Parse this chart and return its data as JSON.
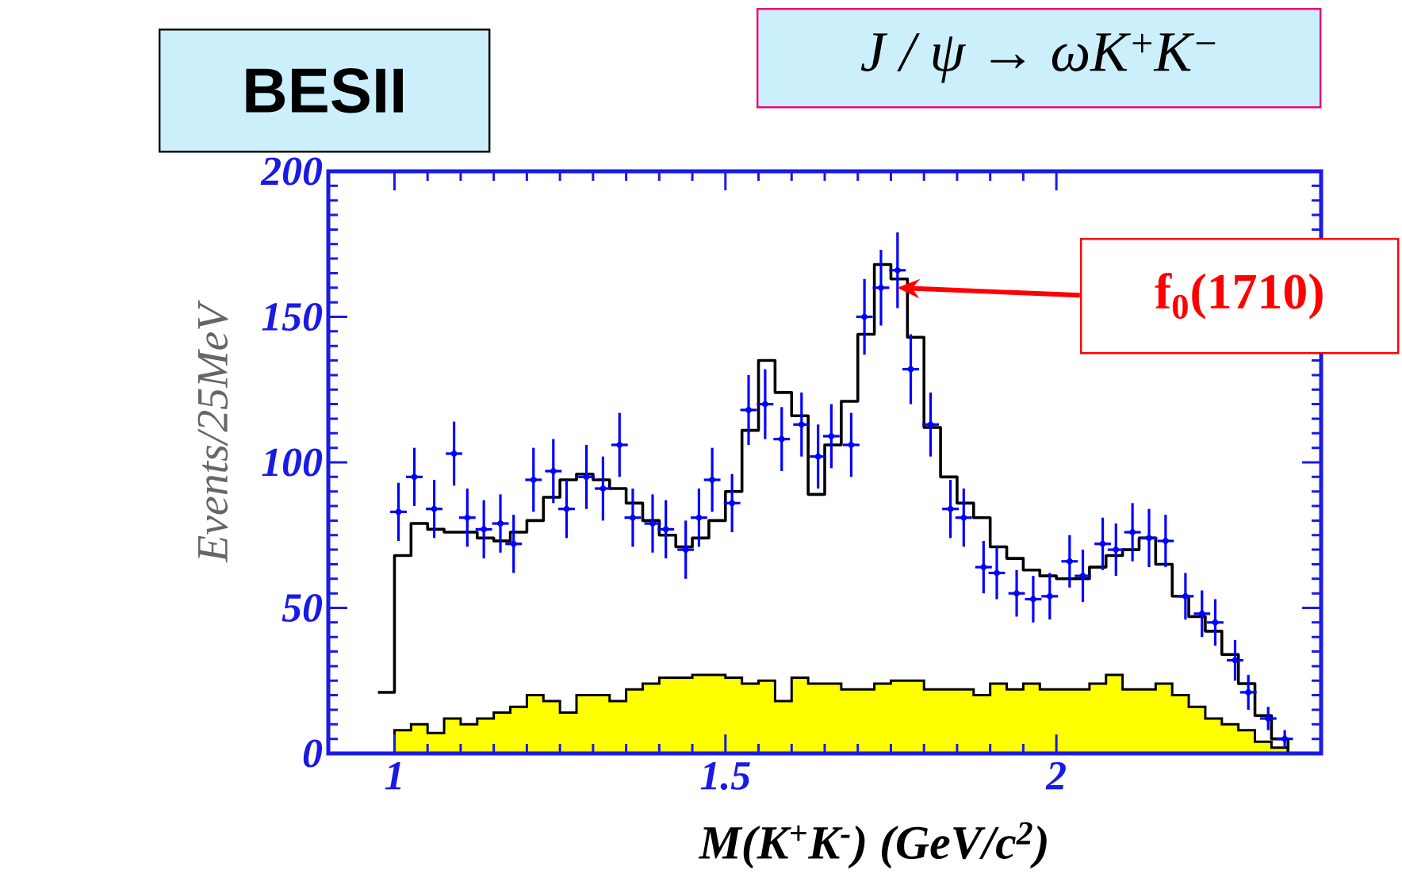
{
  "chart_data": {
    "type": "scatter",
    "xlabel": "M(K$^{+}$K$^{-}$) (GeV/c$^{2}$)",
    "ylabel": "Events/25MeV",
    "xlim": [
      0.9,
      2.4
    ],
    "ylim": [
      0,
      200
    ],
    "xticks": [
      1,
      1.5,
      2
    ],
    "yticks": [
      0,
      50,
      100,
      150,
      200
    ],
    "annotations": [
      "BESII",
      "*J / ψ → ωK*$^{+}$*K*$^{−}$",
      "f$_{0}$(1710)"
    ],
    "series": [
      {
        "type": "area",
        "color": "#ffff00",
        "x": [
          1.0,
          1.025,
          1.05,
          1.075,
          1.1,
          1.125,
          1.15,
          1.175,
          1.2,
          1.225,
          1.25,
          1.275,
          1.3,
          1.325,
          1.35,
          1.375,
          1.4,
          1.425,
          1.45,
          1.475,
          1.5,
          1.525,
          1.55,
          1.575,
          1.6,
          1.625,
          1.65,
          1.675,
          1.7,
          1.725,
          1.75,
          1.775,
          1.8,
          1.825,
          1.85,
          1.875,
          1.9,
          1.925,
          1.95,
          1.975,
          2.0,
          2.025,
          2.05,
          2.075,
          2.1,
          2.125,
          2.15,
          2.175,
          2.2,
          2.225,
          2.25,
          2.275,
          2.3,
          2.325,
          2.35
        ],
        "values": [
          8,
          10,
          7,
          12,
          10,
          12,
          14,
          16,
          20,
          18,
          14,
          20,
          20,
          18,
          22,
          24,
          26,
          26,
          27,
          27,
          26,
          24,
          25,
          18,
          26,
          24,
          24,
          22,
          22,
          24,
          25,
          25,
          22,
          22,
          22,
          20,
          24,
          22,
          24,
          22,
          22,
          22,
          24,
          27,
          22,
          22,
          24,
          20,
          16,
          12,
          10,
          8,
          4,
          2,
          0
        ]
      },
      {
        "type": "step",
        "color": "#000000",
        "x": [
          0.975,
          1.0,
          1.025,
          1.05,
          1.075,
          1.1,
          1.125,
          1.15,
          1.175,
          1.2,
          1.225,
          1.25,
          1.275,
          1.3,
          1.325,
          1.35,
          1.375,
          1.4,
          1.425,
          1.45,
          1.475,
          1.5,
          1.525,
          1.55,
          1.575,
          1.6,
          1.625,
          1.65,
          1.675,
          1.7,
          1.725,
          1.75,
          1.775,
          1.8,
          1.825,
          1.85,
          1.875,
          1.9,
          1.925,
          1.95,
          1.975,
          2.0,
          2.025,
          2.05,
          2.075,
          2.1,
          2.125,
          2.15,
          2.175,
          2.2,
          2.225,
          2.25,
          2.275,
          2.3,
          2.325,
          2.35
        ],
        "values": [
          21,
          68,
          79,
          77,
          76,
          76,
          74,
          73,
          76,
          80,
          88,
          94,
          96,
          94,
          91,
          86,
          80,
          75,
          71,
          74,
          80,
          90,
          111,
          135,
          124,
          116,
          89,
          106,
          121,
          144,
          168,
          163,
          143,
          112,
          95,
          86,
          81,
          71,
          67,
          63,
          61,
          60,
          60,
          64,
          68,
          70,
          74,
          65,
          54,
          47,
          42,
          34,
          24,
          13,
          5,
          0
        ]
      },
      {
        "color": "#0000ff",
        "marker": "circle",
        "x": [
          1.006,
          1.03,
          1.06,
          1.09,
          1.11,
          1.135,
          1.16,
          1.18,
          1.21,
          1.24,
          1.26,
          1.29,
          1.315,
          1.34,
          1.36,
          1.39,
          1.41,
          1.44,
          1.46,
          1.48,
          1.51,
          1.535,
          1.56,
          1.585,
          1.615,
          1.64,
          1.66,
          1.69,
          1.71,
          1.735,
          1.76,
          1.78,
          1.81,
          1.84,
          1.86,
          1.89,
          1.91,
          1.94,
          1.965,
          1.99,
          2.02,
          2.04,
          2.07,
          2.09,
          2.115,
          2.14,
          2.165,
          2.195,
          2.22,
          2.24,
          2.27,
          2.29,
          2.32,
          2.345
        ],
        "values": [
          83,
          95,
          84,
          103,
          81,
          77,
          79,
          72,
          94,
          97,
          84,
          95,
          91,
          106,
          81,
          79,
          77,
          70,
          81,
          94,
          86,
          118,
          120,
          108,
          113,
          102,
          109,
          106,
          150,
          160,
          166,
          132,
          113,
          84,
          81,
          64,
          62,
          55,
          53,
          54,
          66,
          61,
          72,
          70,
          76,
          74,
          73,
          54,
          48,
          45,
          32,
          21,
          12,
          5
        ],
        "errors": [
          10,
          10,
          10,
          11,
          10,
          10,
          10,
          10,
          11,
          11,
          10,
          11,
          11,
          11,
          10,
          10,
          10,
          10,
          10,
          11,
          10,
          12,
          12,
          11,
          11,
          11,
          11,
          11,
          13,
          13,
          13,
          12,
          11,
          10,
          10,
          9,
          9,
          8,
          8,
          8,
          9,
          9,
          9,
          9,
          10,
          10,
          9,
          8,
          8,
          8,
          7,
          6,
          4,
          3
        ],
        "xerrors": [
          0.0125,
          0.0125,
          0.0125,
          0.0125,
          0.0125,
          0.0125,
          0.0125,
          0.0125,
          0.0125,
          0.0125,
          0.0125,
          0.0125,
          0.0125,
          0.0125,
          0.0125,
          0.0125,
          0.0125,
          0.0125,
          0.0125,
          0.0125,
          0.0125,
          0.0125,
          0.0125,
          0.0125,
          0.0125,
          0.0125,
          0.0125,
          0.0125,
          0.0125,
          0.0125,
          0.0125,
          0.0125,
          0.0125,
          0.0125,
          0.0125,
          0.0125,
          0.0125,
          0.0125,
          0.0125,
          0.0125,
          0.0125,
          0.0125,
          0.0125,
          0.0125,
          0.0125,
          0.0125,
          0.0125,
          0.0125,
          0.0125,
          0.0125,
          0.0125,
          0.0125,
          0.0125,
          0.0125
        ]
      }
    ]
  }
}
